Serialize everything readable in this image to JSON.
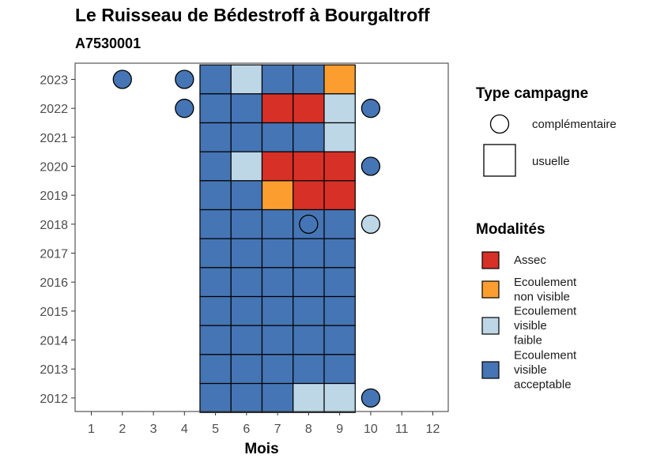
{
  "chart_data": {
    "type": "heatmap",
    "title": "Le Ruisseau de Bédestroff à Bourgaltroff",
    "subtitle": "A7530001",
    "xlabel": "Mois",
    "ylabel": "",
    "x_ticks": [
      1,
      2,
      3,
      4,
      5,
      6,
      7,
      8,
      9,
      10,
      11,
      12
    ],
    "y_ticks": [
      2012,
      2013,
      2014,
      2015,
      2016,
      2017,
      2018,
      2019,
      2020,
      2021,
      2022,
      2023
    ],
    "grid": false,
    "legend_position": "right",
    "modalites": [
      {
        "key": "assec",
        "label_lines": [
          "Assec"
        ],
        "color": "#d73027"
      },
      {
        "key": "non_visible",
        "label_lines": [
          "Ecoulement",
          "non visible"
        ],
        "color": "#fc9e2f"
      },
      {
        "key": "faible",
        "label_lines": [
          "Ecoulement",
          "visible",
          "faible"
        ],
        "color": "#bdd7e7"
      },
      {
        "key": "acceptable",
        "label_lines": [
          "Ecoulement",
          "visible",
          "acceptable"
        ],
        "color": "#4575b4"
      }
    ],
    "campaign_types": [
      {
        "key": "complementaire",
        "label": "complémentaire",
        "shape": "circle"
      },
      {
        "key": "usuelle",
        "label": "usuelle",
        "shape": "square"
      }
    ],
    "legend_titles": {
      "campaign": "Type campagne",
      "modalites": "Modalités"
    },
    "usuelle": [
      {
        "year": 2023,
        "month": 5,
        "modalite": "acceptable"
      },
      {
        "year": 2023,
        "month": 6,
        "modalite": "faible"
      },
      {
        "year": 2023,
        "month": 7,
        "modalite": "acceptable"
      },
      {
        "year": 2023,
        "month": 8,
        "modalite": "acceptable"
      },
      {
        "year": 2023,
        "month": 9,
        "modalite": "non_visible"
      },
      {
        "year": 2022,
        "month": 5,
        "modalite": "acceptable"
      },
      {
        "year": 2022,
        "month": 6,
        "modalite": "acceptable"
      },
      {
        "year": 2022,
        "month": 7,
        "modalite": "assec"
      },
      {
        "year": 2022,
        "month": 8,
        "modalite": "assec"
      },
      {
        "year": 2022,
        "month": 9,
        "modalite": "faible"
      },
      {
        "year": 2021,
        "month": 5,
        "modalite": "acceptable"
      },
      {
        "year": 2021,
        "month": 6,
        "modalite": "acceptable"
      },
      {
        "year": 2021,
        "month": 7,
        "modalite": "acceptable"
      },
      {
        "year": 2021,
        "month": 8,
        "modalite": "acceptable"
      },
      {
        "year": 2021,
        "month": 9,
        "modalite": "faible"
      },
      {
        "year": 2020,
        "month": 5,
        "modalite": "acceptable"
      },
      {
        "year": 2020,
        "month": 6,
        "modalite": "faible"
      },
      {
        "year": 2020,
        "month": 7,
        "modalite": "assec"
      },
      {
        "year": 2020,
        "month": 8,
        "modalite": "assec"
      },
      {
        "year": 2020,
        "month": 9,
        "modalite": "assec"
      },
      {
        "year": 2019,
        "month": 5,
        "modalite": "acceptable"
      },
      {
        "year": 2019,
        "month": 6,
        "modalite": "acceptable"
      },
      {
        "year": 2019,
        "month": 7,
        "modalite": "non_visible"
      },
      {
        "year": 2019,
        "month": 8,
        "modalite": "assec"
      },
      {
        "year": 2019,
        "month": 9,
        "modalite": "assec"
      },
      {
        "year": 2018,
        "month": 5,
        "modalite": "acceptable"
      },
      {
        "year": 2018,
        "month": 6,
        "modalite": "acceptable"
      },
      {
        "year": 2018,
        "month": 7,
        "modalite": "acceptable"
      },
      {
        "year": 2018,
        "month": 8,
        "modalite": "acceptable"
      },
      {
        "year": 2018,
        "month": 9,
        "modalite": "acceptable"
      },
      {
        "year": 2017,
        "month": 5,
        "modalite": "acceptable"
      },
      {
        "year": 2017,
        "month": 6,
        "modalite": "acceptable"
      },
      {
        "year": 2017,
        "month": 7,
        "modalite": "acceptable"
      },
      {
        "year": 2017,
        "month": 8,
        "modalite": "acceptable"
      },
      {
        "year": 2017,
        "month": 9,
        "modalite": "acceptable"
      },
      {
        "year": 2016,
        "month": 5,
        "modalite": "acceptable"
      },
      {
        "year": 2016,
        "month": 6,
        "modalite": "acceptable"
      },
      {
        "year": 2016,
        "month": 7,
        "modalite": "acceptable"
      },
      {
        "year": 2016,
        "month": 8,
        "modalite": "acceptable"
      },
      {
        "year": 2016,
        "month": 9,
        "modalite": "acceptable"
      },
      {
        "year": 2015,
        "month": 5,
        "modalite": "acceptable"
      },
      {
        "year": 2015,
        "month": 6,
        "modalite": "acceptable"
      },
      {
        "year": 2015,
        "month": 7,
        "modalite": "acceptable"
      },
      {
        "year": 2015,
        "month": 8,
        "modalite": "acceptable"
      },
      {
        "year": 2015,
        "month": 9,
        "modalite": "acceptable"
      },
      {
        "year": 2014,
        "month": 5,
        "modalite": "acceptable"
      },
      {
        "year": 2014,
        "month": 6,
        "modalite": "acceptable"
      },
      {
        "year": 2014,
        "month": 7,
        "modalite": "acceptable"
      },
      {
        "year": 2014,
        "month": 8,
        "modalite": "acceptable"
      },
      {
        "year": 2014,
        "month": 9,
        "modalite": "acceptable"
      },
      {
        "year": 2013,
        "month": 5,
        "modalite": "acceptable"
      },
      {
        "year": 2013,
        "month": 6,
        "modalite": "acceptable"
      },
      {
        "year": 2013,
        "month": 7,
        "modalite": "acceptable"
      },
      {
        "year": 2013,
        "month": 8,
        "modalite": "acceptable"
      },
      {
        "year": 2013,
        "month": 9,
        "modalite": "acceptable"
      },
      {
        "year": 2012,
        "month": 5,
        "modalite": "acceptable"
      },
      {
        "year": 2012,
        "month": 6,
        "modalite": "acceptable"
      },
      {
        "year": 2012,
        "month": 7,
        "modalite": "acceptable"
      },
      {
        "year": 2012,
        "month": 8,
        "modalite": "faible"
      },
      {
        "year": 2012,
        "month": 9,
        "modalite": "faible"
      }
    ],
    "complementaire": [
      {
        "year": 2023,
        "month": 2,
        "modalite": "acceptable"
      },
      {
        "year": 2023,
        "month": 4,
        "modalite": "acceptable"
      },
      {
        "year": 2022,
        "month": 4,
        "modalite": "acceptable"
      },
      {
        "year": 2022,
        "month": 10,
        "modalite": "acceptable"
      },
      {
        "year": 2020,
        "month": 10,
        "modalite": "acceptable"
      },
      {
        "year": 2018,
        "month": 8,
        "modalite": "acceptable"
      },
      {
        "year": 2018,
        "month": 10,
        "modalite": "faible"
      },
      {
        "year": 2012,
        "month": 10,
        "modalite": "acceptable"
      }
    ]
  }
}
